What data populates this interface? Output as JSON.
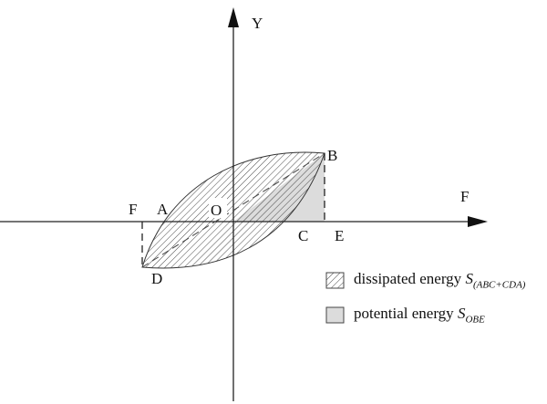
{
  "axes": {
    "y_label": "Y",
    "x_label": "F"
  },
  "points": {
    "A": "A",
    "B": "B",
    "C": "C",
    "D": "D",
    "E": "E",
    "F": "F",
    "O": "O"
  },
  "legend": [
    {
      "text": "dissipated energy ",
      "symbol": "S",
      "subscript": "(ABC+CDA)",
      "fill": "hatched"
    },
    {
      "text": "potential energy ",
      "symbol": "S",
      "subscript": "OBE",
      "fill": "#dcdcdc"
    }
  ],
  "colors": {
    "line": "#222222",
    "potential_fill": "#dcdcdc"
  }
}
